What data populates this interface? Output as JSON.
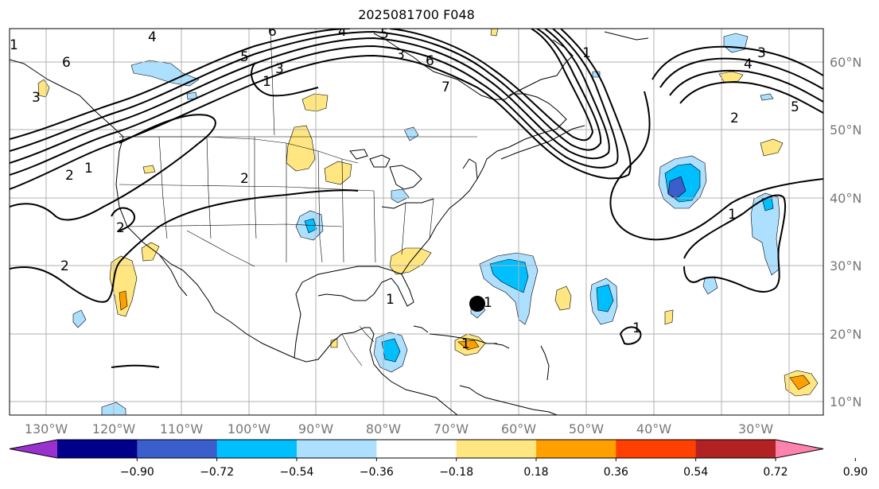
{
  "title": "2025081700 F048",
  "lat_labels": [
    "60°N",
    "50°N",
    "40°N",
    "30°N",
    "20°N",
    "10°N"
  ],
  "lon_labels": [
    "130°W",
    "120°W",
    "110°W",
    "100°W",
    "90°W",
    "80°W",
    "70°W",
    "60°W",
    "50°W",
    "40°W",
    "30°W"
  ],
  "colorbar": {
    "ticks": [
      "−0.90",
      "−0.72",
      "−0.54",
      "−0.36",
      "−0.18",
      "0.18",
      "0.36",
      "0.54",
      "0.72",
      "0.90"
    ],
    "colors": [
      "#9932CC",
      "#00008B",
      "#3A5FCD",
      "#00BFFF",
      "#ADDFFF",
      "#FFFFFF",
      "#FFE680",
      "#FFA000",
      "#FF4000",
      "#B22222",
      "#FF82AB"
    ]
  },
  "contour_labels": [
    {
      "text": "6"
    },
    {
      "text": "4"
    },
    {
      "text": "6"
    },
    {
      "text": "4"
    },
    {
      "text": "5"
    },
    {
      "text": "3"
    },
    {
      "text": "1"
    },
    {
      "text": "5"
    },
    {
      "text": "3"
    },
    {
      "text": "6"
    },
    {
      "text": "7"
    },
    {
      "text": "1"
    },
    {
      "text": "3"
    },
    {
      "text": "4"
    },
    {
      "text": "5"
    },
    {
      "text": "2"
    },
    {
      "text": "2"
    },
    {
      "text": "1"
    },
    {
      "text": "2"
    },
    {
      "text": "2"
    },
    {
      "text": "2"
    },
    {
      "text": "1"
    },
    {
      "text": "1"
    },
    {
      "text": "1"
    },
    {
      "text": "1"
    },
    {
      "text": "1"
    },
    {
      "text": "1"
    },
    {
      "text": "3"
    }
  ]
}
